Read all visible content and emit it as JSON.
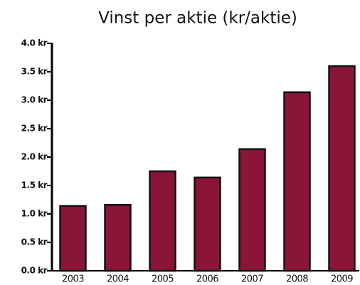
{
  "chart_data": {
    "type": "bar",
    "title": "Vinst per aktie (kr/aktie)",
    "categories": [
      "2003",
      "2004",
      "2005",
      "2006",
      "2007",
      "2008",
      "2009"
    ],
    "values": [
      1.14,
      1.16,
      1.75,
      1.64,
      2.14,
      3.14,
      3.6
    ],
    "color": "#8b1538",
    "ylim": [
      0,
      4
    ],
    "yticks": [
      {
        "value": 0,
        "label": "0.0 kr"
      },
      {
        "value": 0.5,
        "label": "0.5 kr"
      },
      {
        "value": 1,
        "label": "1.0 kr"
      },
      {
        "value": 1.5,
        "label": "1.5 kr"
      },
      {
        "value": 2,
        "label": "2.0 kr"
      },
      {
        "value": 2.5,
        "label": "2.5 kr"
      },
      {
        "value": 3,
        "label": "3.0 kr"
      },
      {
        "value": 3.5,
        "label": "3.5 kr"
      },
      {
        "value": 4,
        "label": "4.0 kr"
      }
    ],
    "grid": false
  }
}
